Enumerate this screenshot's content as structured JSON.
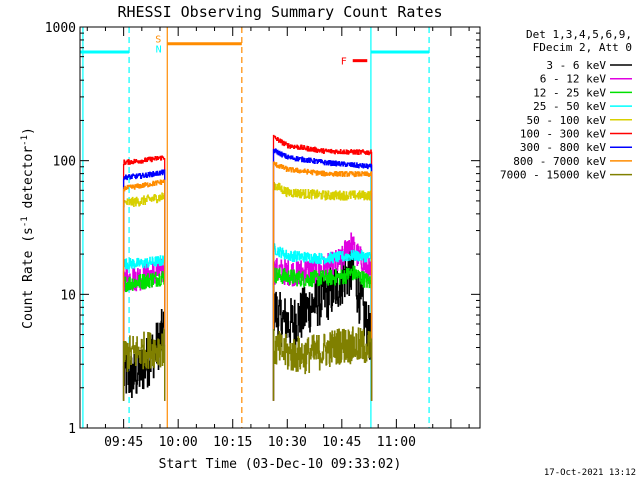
{
  "chart_data": {
    "type": "line",
    "title": "RHESSI Observing Summary Count Rates",
    "xlabel": "Start Time (03-Dec-10 09:33:02)",
    "ylabel_main": "Count Rate (s",
    "ylabel_sup1": "-1",
    "ylabel_mid": " detector",
    "ylabel_sup2": "-1",
    "ylabel_end": ")",
    "x_range_minutes": [
      573,
      683
    ],
    "ylim": [
      1,
      1000
    ],
    "yscale": "log",
    "x_ticks": [
      {
        "value": 585,
        "label": "09:45"
      },
      {
        "value": 600,
        "label": "10:00"
      },
      {
        "value": 615,
        "label": "10:15"
      },
      {
        "value": 630,
        "label": "10:30"
      },
      {
        "value": 645,
        "label": "10:45"
      },
      {
        "value": 660,
        "label": "11:00"
      }
    ],
    "y_ticks": [
      {
        "value": 1,
        "label": "1"
      },
      {
        "value": 10,
        "label": "10"
      },
      {
        "value": 100,
        "label": "100"
      },
      {
        "value": 1000,
        "label": "1000"
      }
    ],
    "legend_header": [
      "Det 1,3,4,5,6,9,",
      "FDecim 2, Att 0"
    ],
    "legend_placement": "right",
    "timestamp": "17-Oct-2021 13:12",
    "segments": [
      [
        585,
        596.3
      ],
      [
        626.2,
        653.2
      ]
    ],
    "series": [
      {
        "name": "3 - 6 keV",
        "color": "#000000",
        "seg1": [
          [
            585,
            2.5
          ],
          [
            588,
            2.4
          ],
          [
            591,
            3.0
          ],
          [
            594,
            4.0
          ],
          [
            596.3,
            5.5
          ]
        ],
        "seg2": [
          [
            626.2,
            8.0
          ],
          [
            628,
            6.5
          ],
          [
            631,
            6.0
          ],
          [
            634,
            7.0
          ],
          [
            637,
            8.5
          ],
          [
            640,
            9.5
          ],
          [
            643,
            11.0
          ],
          [
            645,
            13.0
          ],
          [
            647,
            15.0
          ],
          [
            648.5,
            13.5
          ],
          [
            650,
            9.0
          ],
          [
            652,
            5.5
          ],
          [
            653.2,
            4.5
          ]
        ],
        "noise": 0.2
      },
      {
        "name": "6 - 12 keV",
        "color": "#e000e0",
        "seg1": [
          [
            585,
            13
          ],
          [
            590,
            13.5
          ],
          [
            596.3,
            15
          ]
        ],
        "seg2": [
          [
            626.2,
            15
          ],
          [
            632,
            14.5
          ],
          [
            640,
            15.5
          ],
          [
            645,
            18
          ],
          [
            647,
            25
          ],
          [
            649,
            20
          ],
          [
            653.2,
            14
          ]
        ],
        "noise": 0.1
      },
      {
        "name": "12 - 25 keV",
        "color": "#00e000",
        "seg1": [
          [
            585,
            12
          ],
          [
            590,
            12.5
          ],
          [
            596.3,
            13.5
          ]
        ],
        "seg2": [
          [
            626.2,
            14
          ],
          [
            635,
            13
          ],
          [
            645,
            13.5
          ],
          [
            648,
            14.5
          ],
          [
            653.2,
            12
          ]
        ],
        "noise": 0.06
      },
      {
        "name": "25 - 50 keV",
        "color": "#00ffff",
        "seg1": [
          [
            585,
            17
          ],
          [
            590,
            17
          ],
          [
            596.3,
            18
          ]
        ],
        "seg2": [
          [
            626.2,
            22
          ],
          [
            630,
            19.5
          ],
          [
            640,
            18.5
          ],
          [
            648,
            19.5
          ],
          [
            653.2,
            19
          ]
        ],
        "noise": 0.04
      },
      {
        "name": "50 - 100 keV",
        "color": "#d8d000",
        "seg1": [
          [
            585,
            48
          ],
          [
            590,
            50
          ],
          [
            596.3,
            54
          ]
        ],
        "seg2": [
          [
            626.2,
            66
          ],
          [
            630,
            58
          ],
          [
            640,
            55
          ],
          [
            653.2,
            55
          ]
        ],
        "noise": 0.035
      },
      {
        "name": "100 - 300 keV",
        "color": "#ff0000",
        "seg1": [
          [
            585,
            97
          ],
          [
            590,
            100
          ],
          [
            596.3,
            106
          ]
        ],
        "seg2": [
          [
            626.2,
            150
          ],
          [
            630,
            130
          ],
          [
            640,
            118
          ],
          [
            653.2,
            115
          ]
        ],
        "noise": 0.018
      },
      {
        "name": "300 - 800 keV",
        "color": "#0000ff",
        "seg1": [
          [
            585,
            75
          ],
          [
            590,
            77
          ],
          [
            596.3,
            82
          ]
        ],
        "seg2": [
          [
            626.2,
            120
          ],
          [
            630,
            106
          ],
          [
            640,
            97
          ],
          [
            653.2,
            90
          ]
        ],
        "noise": 0.018
      },
      {
        "name": "800 - 7000 keV",
        "color": "#ff8c00",
        "seg1": [
          [
            585,
            62
          ],
          [
            590,
            65
          ],
          [
            596.3,
            70
          ]
        ],
        "seg2": [
          [
            626.2,
            95
          ],
          [
            630,
            86
          ],
          [
            640,
            80
          ],
          [
            653.2,
            79
          ]
        ],
        "noise": 0.018
      },
      {
        "name": "7000 - 15000 keV",
        "color": "#808000",
        "seg1": [
          [
            585,
            3.5
          ],
          [
            590,
            3.8
          ],
          [
            596.3,
            4.0
          ]
        ],
        "seg2": [
          [
            626.2,
            4.0
          ],
          [
            630,
            3.6
          ],
          [
            635,
            3.5
          ],
          [
            640,
            3.8
          ],
          [
            645,
            4.2
          ],
          [
            653.2,
            4.0
          ]
        ],
        "noise": 0.14
      }
    ],
    "orbit_flags": [
      {
        "label": "",
        "color": "#00ffff",
        "x_start": 573,
        "x_end": 586.5,
        "y": 650
      },
      {
        "label": "",
        "color": "#00ffff",
        "x_start": 653,
        "x_end": 669,
        "y": 650
      }
    ],
    "saa_flag": {
      "label": "S",
      "color": "#ff8c00",
      "x_start": 597,
      "x_end": 617.5,
      "y": 750
    },
    "night_label": {
      "label": "N",
      "color": "#00ffff",
      "x": 596
    },
    "flare_flag": {
      "label": "F",
      "color": "#ff0000",
      "x_start": 648,
      "x_end": 652,
      "y": 560
    },
    "vlines": [
      {
        "x": 573.8,
        "color": "#00ffff",
        "style": "solid"
      },
      {
        "x": 586.5,
        "color": "#00ffff",
        "style": "dashed"
      },
      {
        "x": 597,
        "color": "#ff8c00",
        "style": "solid"
      },
      {
        "x": 617.5,
        "color": "#ff8c00",
        "style": "dashed"
      },
      {
        "x": 653,
        "color": "#00ffff",
        "style": "solid"
      },
      {
        "x": 669,
        "color": "#00ffff",
        "style": "dashed"
      }
    ]
  }
}
